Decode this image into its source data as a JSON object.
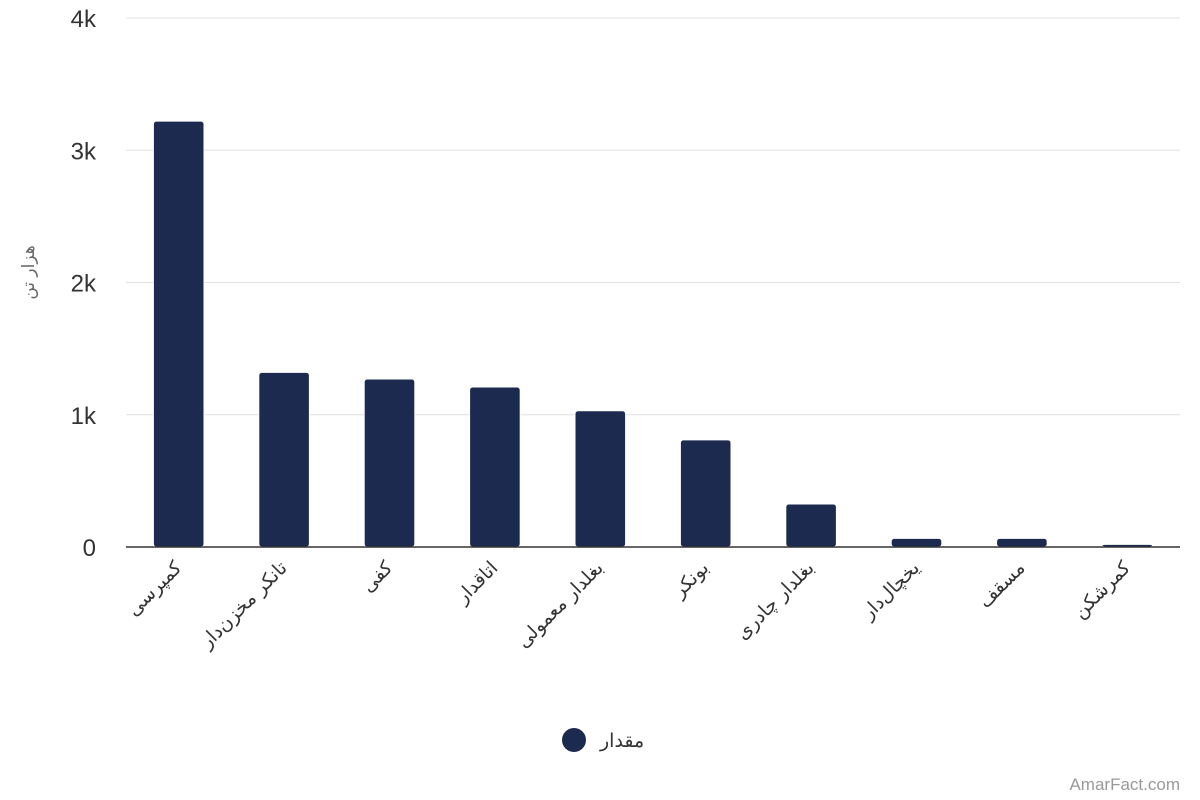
{
  "chart_data": {
    "type": "bar",
    "ylabel": "هزار تن",
    "xlabel": "",
    "ylim": [
      0,
      4000
    ],
    "y_ticks": [
      {
        "value": 0,
        "label": "0"
      },
      {
        "value": 1000,
        "label": "1k"
      },
      {
        "value": 2000,
        "label": "2k"
      },
      {
        "value": 3000,
        "label": "3k"
      },
      {
        "value": 4000,
        "label": "4k"
      }
    ],
    "categories": [
      "کمپرسی",
      "تانکر مخزن‌دار",
      "کفی",
      "اتاقدار",
      "بغلدار معمولی",
      "بونکر",
      "بغلدار چادری",
      "یخچال‌دار",
      "مسقف",
      "کمرشکن"
    ],
    "series": [
      {
        "name": "مقدار",
        "color": "#1b2a4e",
        "values": [
          3220,
          1320,
          1270,
          1210,
          1030,
          810,
          325,
          65,
          65,
          20
        ]
      }
    ],
    "grid": true,
    "legend": "bottom-center"
  },
  "credit": "AmarFact.com"
}
